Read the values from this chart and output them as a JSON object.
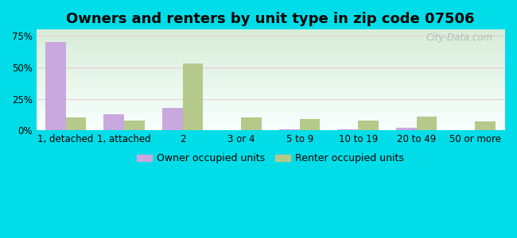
{
  "title": "Owners and renters by unit type in zip code 07506",
  "categories": [
    "1, detached",
    "1, attached",
    "2",
    "3 or 4",
    "5 to 9",
    "10 to 19",
    "20 to 49",
    "50 or more"
  ],
  "owner_values": [
    70,
    13,
    18,
    0,
    1,
    1,
    2,
    0
  ],
  "renter_values": [
    10,
    8,
    53,
    10,
    9,
    8,
    11,
    7
  ],
  "owner_color": "#c9a8e0",
  "renter_color": "#b5c98a",
  "ylim": [
    0,
    80
  ],
  "yticks": [
    0,
    25,
    50,
    75
  ],
  "ytick_labels": [
    "0%",
    "25%",
    "50%",
    "75%"
  ],
  "owner_label": "Owner occupied units",
  "renter_label": "Renter occupied units",
  "background_outer": "#00dde8",
  "watermark": "City-Data.com",
  "bar_width": 0.35,
  "title_fontsize": 13,
  "axis_fontsize": 8.5,
  "legend_fontsize": 9,
  "grad_top": "#f8fffe",
  "grad_bottom": "#d8edd8"
}
